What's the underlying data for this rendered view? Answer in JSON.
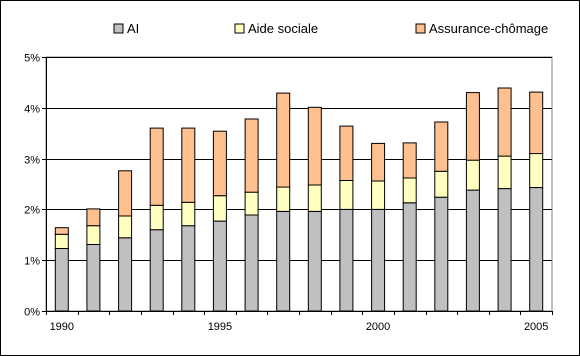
{
  "chart_data": {
    "type": "bar",
    "stacked": true,
    "x": [
      1990,
      1991,
      1992,
      1993,
      1994,
      1995,
      1996,
      1997,
      1998,
      1999,
      2000,
      2001,
      2002,
      2003,
      2004,
      2005
    ],
    "x_tick_labels": [
      "1990",
      "1995",
      "2000",
      "2005"
    ],
    "series": [
      {
        "name": "AI",
        "color": "#c0c0c0",
        "values": [
          1.23,
          1.31,
          1.44,
          1.6,
          1.68,
          1.77,
          1.89,
          1.96,
          1.96,
          2.0,
          2.0,
          2.13,
          2.24,
          2.38,
          2.41,
          2.43
        ]
      },
      {
        "name": "Aide sociale",
        "color": "#ffffc0",
        "values": [
          0.28,
          0.37,
          0.43,
          0.48,
          0.46,
          0.5,
          0.45,
          0.48,
          0.52,
          0.57,
          0.56,
          0.49,
          0.51,
          0.59,
          0.64,
          0.67
        ]
      },
      {
        "name": "Assurance-chômage",
        "color": "#ffc090",
        "values": [
          0.13,
          0.33,
          0.89,
          1.52,
          1.46,
          1.27,
          1.44,
          1.85,
          1.53,
          1.07,
          0.74,
          0.69,
          0.97,
          1.33,
          1.34,
          1.21
        ]
      }
    ],
    "ylim": [
      0,
      5
    ],
    "y_ticks": [
      0,
      1,
      2,
      3,
      4,
      5
    ],
    "y_tick_labels": [
      "0%",
      "1%",
      "2%",
      "3%",
      "4%",
      "5%"
    ],
    "grid": true,
    "legend_position": "top",
    "title": "",
    "xlabel": "",
    "ylabel": ""
  }
}
